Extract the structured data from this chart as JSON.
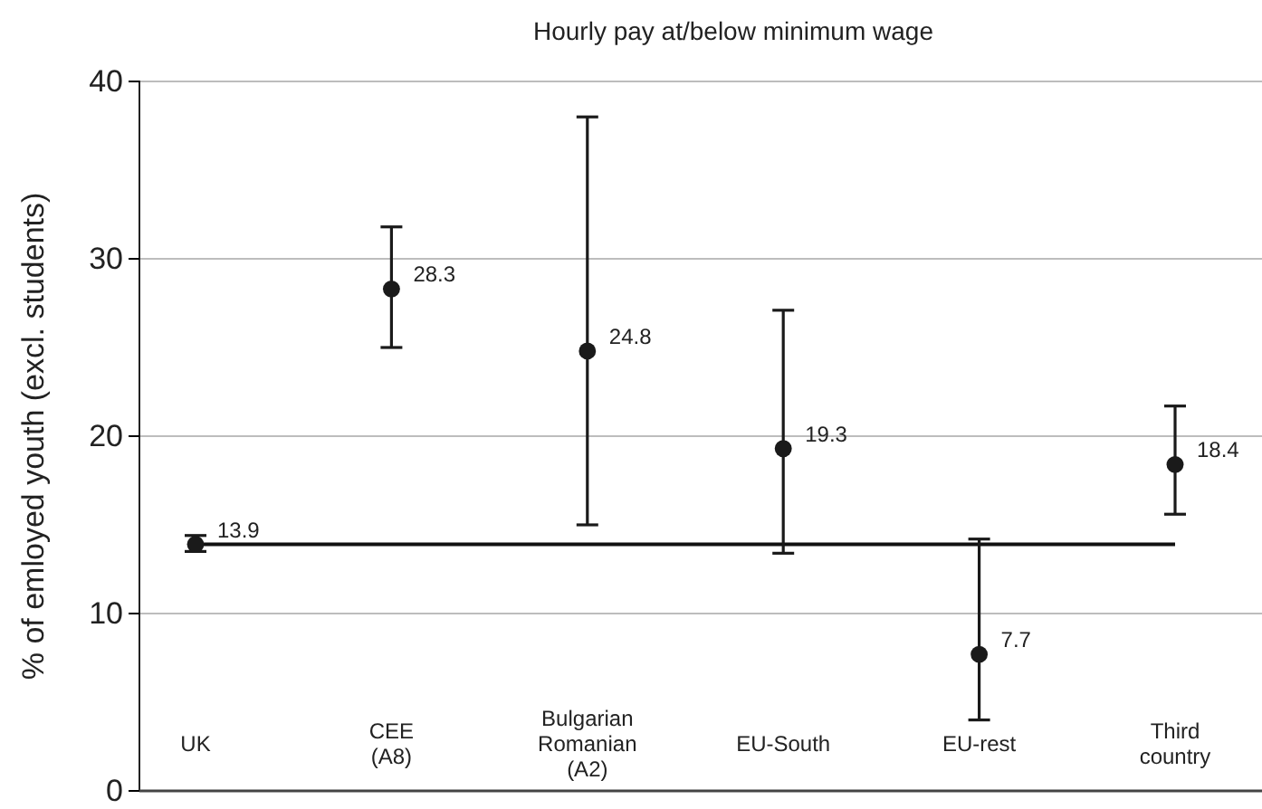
{
  "chart_data": {
    "type": "scatter",
    "title": "Hourly pay at/below minimum wage",
    "ylabel": "% of emloyed youth (excl. students)",
    "categories": [
      "UK",
      "CEE\n(A8)",
      "Bulgarian\nRomanian\n(A2)",
      "EU-South",
      "EU-rest",
      "Third\ncountry"
    ],
    "series": [
      {
        "color": "#1a1a1a",
        "values": [
          13.9,
          28.3,
          24.8,
          19.3,
          7.7,
          18.4
        ],
        "errors": [
          [
            13.5,
            14.4
          ],
          [
            25.0,
            31.8
          ],
          [
            15.0,
            38.0
          ],
          [
            13.4,
            27.1
          ],
          [
            4.0,
            14.2
          ],
          [
            15.6,
            21.7
          ]
        ]
      }
    ],
    "ylim": [
      0,
      40
    ],
    "yticks": [
      0,
      10,
      20,
      30,
      40
    ],
    "grid": "y",
    "marker": "circle",
    "data_labels": true,
    "ref_lines": [
      {
        "axis": "y",
        "value": 13.9,
        "color": "#111111"
      }
    ]
  }
}
